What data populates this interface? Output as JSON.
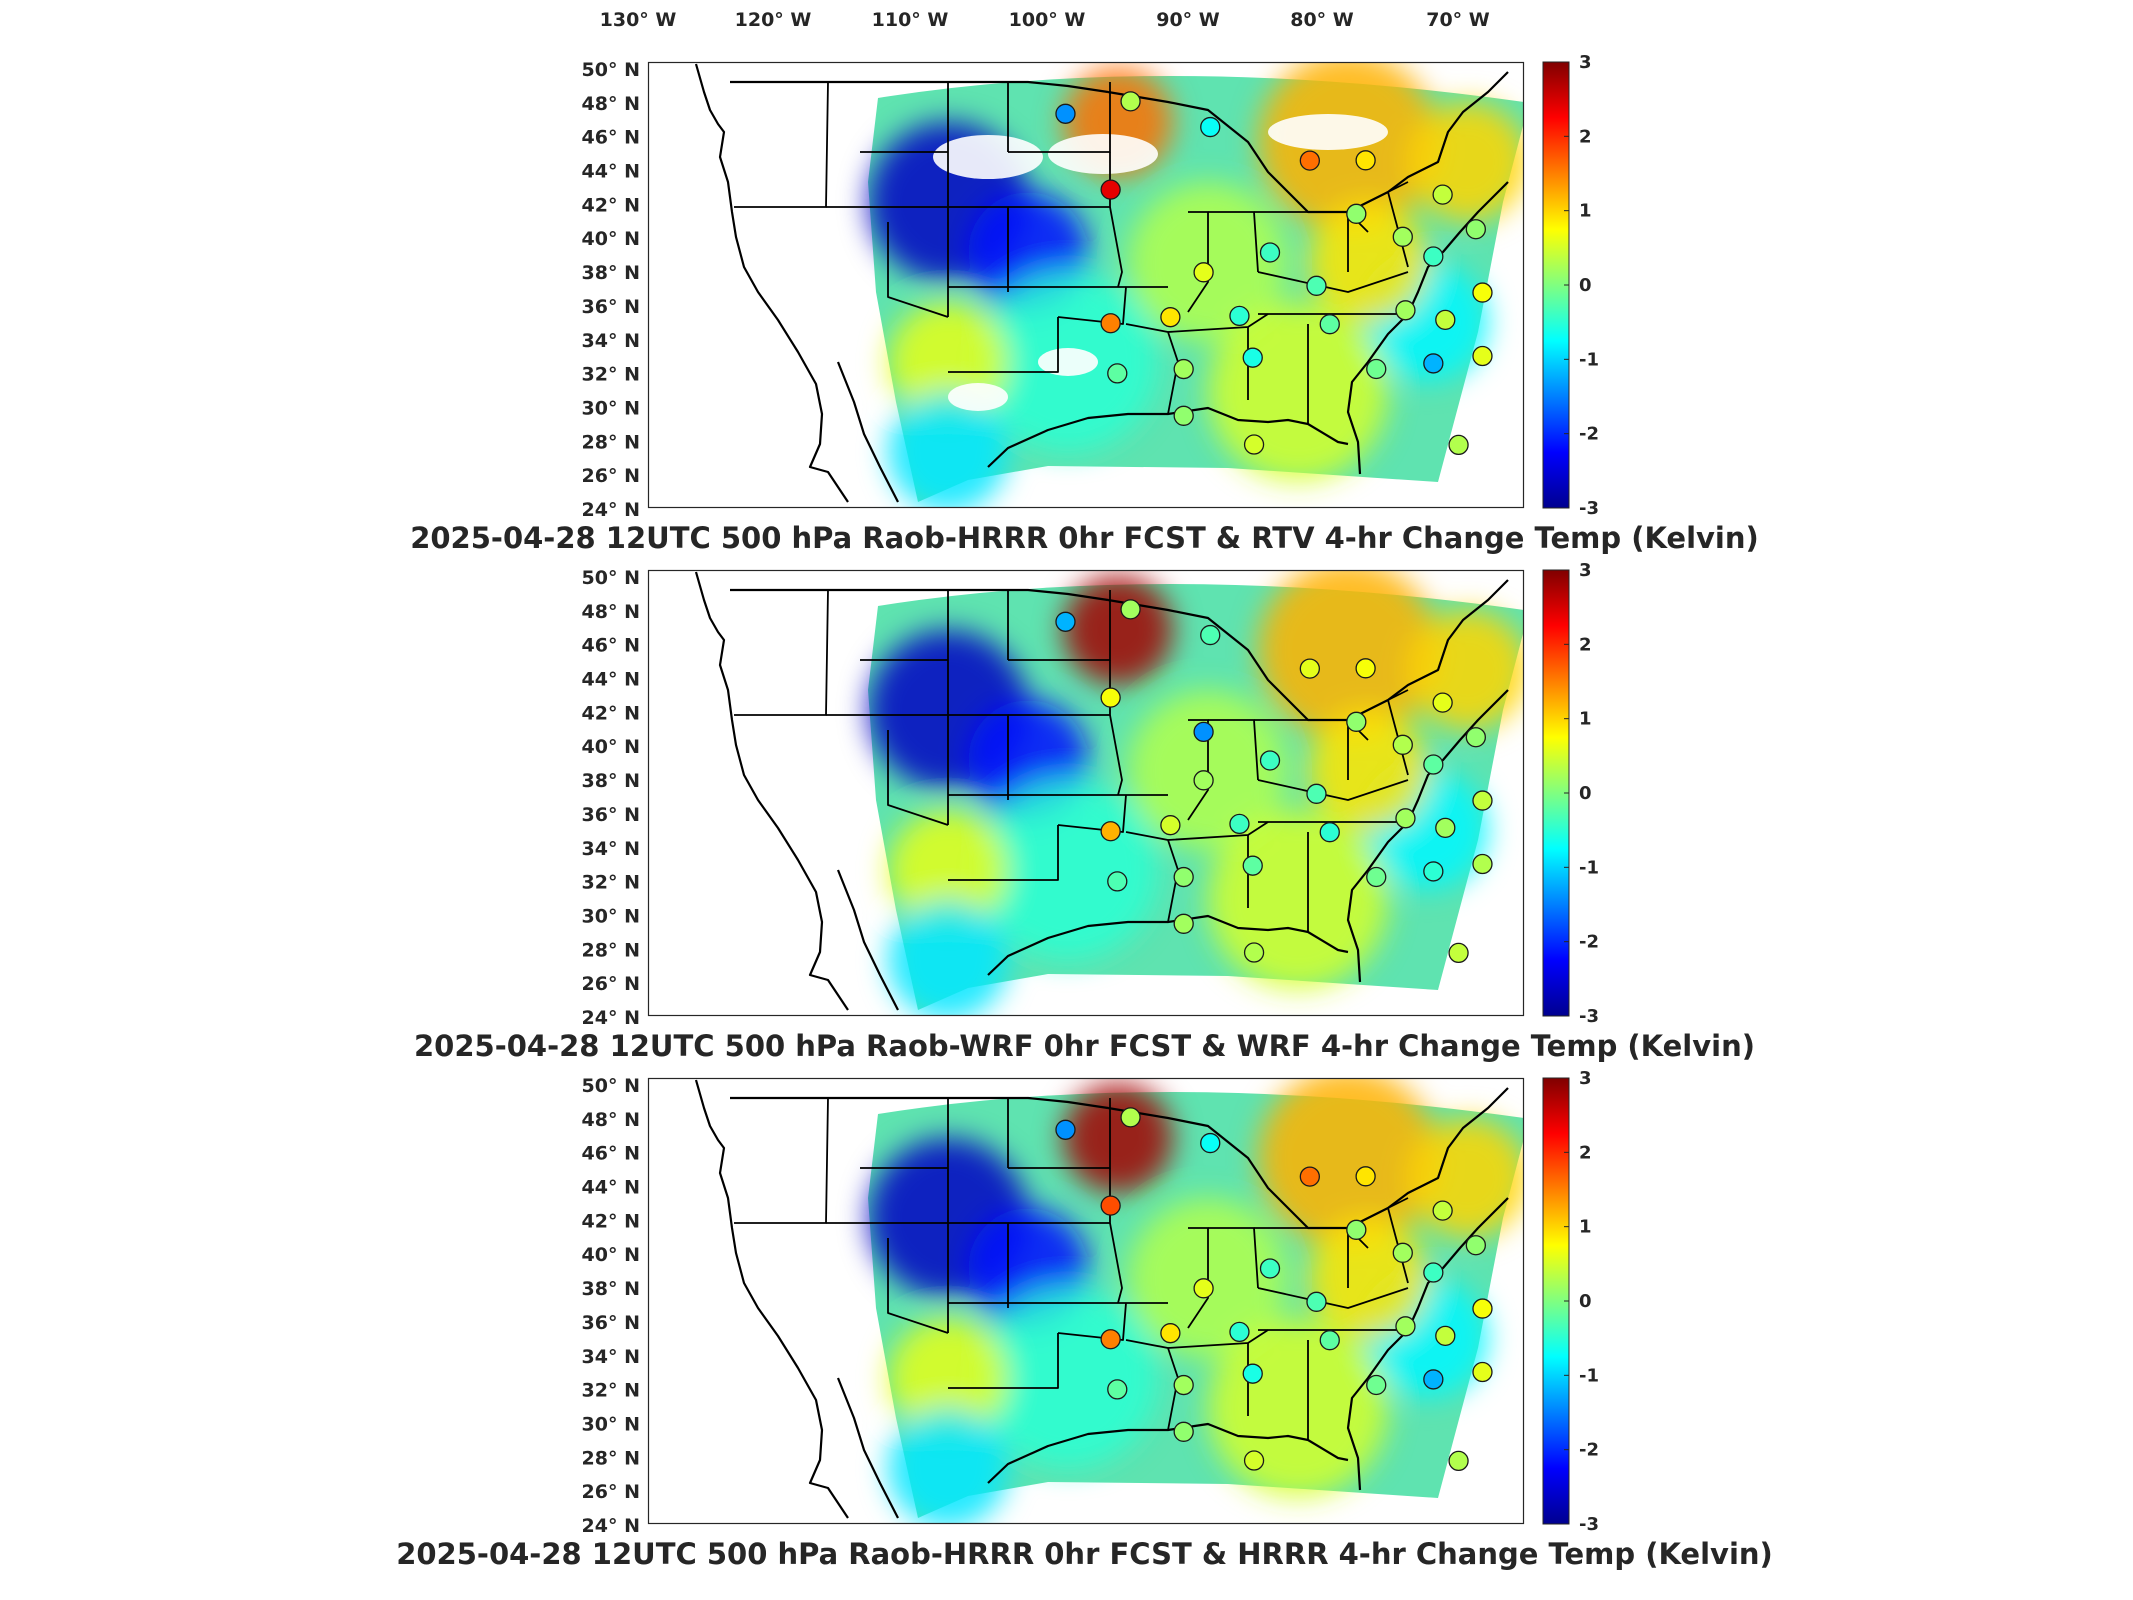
{
  "longitude_labels": [
    "130° W",
    "120° W",
    "110° W",
    "100° W",
    "90° W",
    "80° W",
    "70° W"
  ],
  "latitude_labels": [
    "50° N",
    "48° N",
    "46° N",
    "44° N",
    "42° N",
    "40° N",
    "38° N",
    "36° N",
    "34° N",
    "32° N",
    "30° N",
    "28° N",
    "26° N",
    "24° N"
  ],
  "colorbar": {
    "ticks": [
      "3",
      "2",
      "1",
      "0",
      "-1",
      "-2",
      "-3"
    ],
    "range": [
      -3,
      3
    ],
    "colormap": "jet"
  },
  "panels": [
    {
      "title": "2025-04-28 12UTC 500 hPa Raob-HRRR 0hr FCST & RTV 4-hr Change Temp (Kelvin)",
      "field_pattern": "RTV 4-hr change",
      "stations": [
        {
          "lon": -111.9,
          "lat": 47.5,
          "value": -1.4
        },
        {
          "lon": -107.0,
          "lat": 48.3,
          "value": 0.3
        },
        {
          "lon": -101.0,
          "lat": 46.8,
          "value": -0.7
        },
        {
          "lon": -93.5,
          "lat": 44.8,
          "value": 1.6
        },
        {
          "lon": -108.5,
          "lat": 43.0,
          "value": 2.4
        },
        {
          "lon": -89.3,
          "lat": 44.8,
          "value": 0.9
        },
        {
          "lon": -83.5,
          "lat": 42.7,
          "value": 0.4
        },
        {
          "lon": -90.0,
          "lat": 41.6,
          "value": 0.1
        },
        {
          "lon": -86.5,
          "lat": 40.2,
          "value": 0.2
        },
        {
          "lon": -81.0,
          "lat": 40.6,
          "value": 0.1
        },
        {
          "lon": -75.0,
          "lat": 42.8,
          "value": 0.3
        },
        {
          "lon": -96.5,
          "lat": 39.3,
          "value": -0.4
        },
        {
          "lon": -101.5,
          "lat": 38.1,
          "value": 0.6
        },
        {
          "lon": -93.0,
          "lat": 37.3,
          "value": -0.3
        },
        {
          "lon": -84.2,
          "lat": 39.0,
          "value": -0.4
        },
        {
          "lon": -80.5,
          "lat": 36.8,
          "value": 0.7
        },
        {
          "lon": -83.3,
          "lat": 35.2,
          "value": 0.4
        },
        {
          "lon": -104.0,
          "lat": 35.4,
          "value": 0.9
        },
        {
          "lon": -108.5,
          "lat": 35.0,
          "value": 1.5
        },
        {
          "lon": -98.8,
          "lat": 35.5,
          "value": -0.5
        },
        {
          "lon": -92.0,
          "lat": 35.0,
          "value": -0.2
        },
        {
          "lon": -86.3,
          "lat": 35.8,
          "value": 0.2
        },
        {
          "lon": -97.8,
          "lat": 33.0,
          "value": -0.6
        },
        {
          "lon": -103.0,
          "lat": 32.3,
          "value": 0.2
        },
        {
          "lon": -88.5,
          "lat": 32.3,
          "value": -0.1
        },
        {
          "lon": -84.2,
          "lat": 32.6,
          "value": -1.2
        },
        {
          "lon": -80.5,
          "lat": 33.0,
          "value": 0.6
        },
        {
          "lon": -108.0,
          "lat": 32.0,
          "value": -0.2
        },
        {
          "lon": -103.0,
          "lat": 29.5,
          "value": 0.1
        },
        {
          "lon": -97.7,
          "lat": 27.8,
          "value": 0.5
        },
        {
          "lon": -82.3,
          "lat": 27.7,
          "value": 0.3
        },
        {
          "lon": -76.0,
          "lat": 36.0,
          "value": 0.2
        }
      ]
    },
    {
      "title": "2025-04-28 12UTC 500 hPa Raob-WRF 0hr FCST & WRF 4-hr Change Temp (Kelvin)",
      "field_pattern": "WRF 4-hr change",
      "stations": [
        {
          "lon": -111.9,
          "lat": 47.5,
          "value": -1.2
        },
        {
          "lon": -107.0,
          "lat": 48.3,
          "value": 0.2
        },
        {
          "lon": -101.0,
          "lat": 46.8,
          "value": -0.3
        },
        {
          "lon": -93.5,
          "lat": 44.8,
          "value": 0.6
        },
        {
          "lon": -108.5,
          "lat": 43.0,
          "value": 0.7
        },
        {
          "lon": -89.3,
          "lat": 44.8,
          "value": 0.7
        },
        {
          "lon": -83.5,
          "lat": 42.7,
          "value": 0.6
        },
        {
          "lon": -90.0,
          "lat": 41.6,
          "value": 0.1
        },
        {
          "lon": -86.5,
          "lat": 40.2,
          "value": 0.3
        },
        {
          "lon": -81.0,
          "lat": 40.6,
          "value": 0.1
        },
        {
          "lon": -75.0,
          "lat": 42.8,
          "value": 0.2
        },
        {
          "lon": -101.5,
          "lat": 41.0,
          "value": -1.4
        },
        {
          "lon": -96.5,
          "lat": 39.3,
          "value": -0.4
        },
        {
          "lon": -101.5,
          "lat": 38.1,
          "value": 0.2
        },
        {
          "lon": -93.0,
          "lat": 37.3,
          "value": -0.3
        },
        {
          "lon": -84.2,
          "lat": 39.0,
          "value": -0.2
        },
        {
          "lon": -80.5,
          "lat": 36.8,
          "value": 0.4
        },
        {
          "lon": -83.3,
          "lat": 35.2,
          "value": 0.2
        },
        {
          "lon": -104.0,
          "lat": 35.4,
          "value": 0.5
        },
        {
          "lon": -108.5,
          "lat": 35.0,
          "value": 1.2
        },
        {
          "lon": -98.8,
          "lat": 35.5,
          "value": -0.4
        },
        {
          "lon": -92.0,
          "lat": 35.0,
          "value": -0.5
        },
        {
          "lon": -86.3,
          "lat": 35.8,
          "value": 0.2
        },
        {
          "lon": -97.8,
          "lat": 33.0,
          "value": -0.2
        },
        {
          "lon": -103.0,
          "lat": 32.3,
          "value": 0.1
        },
        {
          "lon": -88.5,
          "lat": 32.3,
          "value": -0.1
        },
        {
          "lon": -84.2,
          "lat": 32.6,
          "value": -0.5
        },
        {
          "lon": -80.5,
          "lat": 33.0,
          "value": 0.3
        },
        {
          "lon": -108.0,
          "lat": 32.0,
          "value": -0.3
        },
        {
          "lon": -103.0,
          "lat": 29.5,
          "value": 0.2
        },
        {
          "lon": -97.7,
          "lat": 27.8,
          "value": 0.3
        },
        {
          "lon": -82.3,
          "lat": 27.7,
          "value": 0.4
        },
        {
          "lon": -76.0,
          "lat": 36.0,
          "value": 0.1
        }
      ]
    },
    {
      "title": "2025-04-28 12UTC 500 hPa Raob-HRRR 0hr FCST & HRRR 4-hr Change Temp (Kelvin)",
      "field_pattern": "HRRR 4-hr change",
      "stations": [
        {
          "lon": -111.9,
          "lat": 47.5,
          "value": -1.4
        },
        {
          "lon": -107.0,
          "lat": 48.3,
          "value": 0.3
        },
        {
          "lon": -101.0,
          "lat": 46.8,
          "value": -0.7
        },
        {
          "lon": -93.5,
          "lat": 44.8,
          "value": 1.6
        },
        {
          "lon": -108.5,
          "lat": 43.0,
          "value": 1.8
        },
        {
          "lon": -89.3,
          "lat": 44.8,
          "value": 0.9
        },
        {
          "lon": -83.5,
          "lat": 42.7,
          "value": 0.4
        },
        {
          "lon": -90.0,
          "lat": 41.6,
          "value": 0.1
        },
        {
          "lon": -86.5,
          "lat": 40.2,
          "value": 0.2
        },
        {
          "lon": -81.0,
          "lat": 40.6,
          "value": 0.1
        },
        {
          "lon": -75.0,
          "lat": 42.8,
          "value": 0.3
        },
        {
          "lon": -96.5,
          "lat": 39.3,
          "value": -0.4
        },
        {
          "lon": -101.5,
          "lat": 38.1,
          "value": 0.6
        },
        {
          "lon": -93.0,
          "lat": 37.3,
          "value": -0.3
        },
        {
          "lon": -84.2,
          "lat": 39.0,
          "value": -0.4
        },
        {
          "lon": -80.5,
          "lat": 36.8,
          "value": 0.7
        },
        {
          "lon": -83.3,
          "lat": 35.2,
          "value": 0.4
        },
        {
          "lon": -104.0,
          "lat": 35.4,
          "value": 0.9
        },
        {
          "lon": -108.5,
          "lat": 35.0,
          "value": 1.5
        },
        {
          "lon": -98.8,
          "lat": 35.5,
          "value": -0.5
        },
        {
          "lon": -92.0,
          "lat": 35.0,
          "value": -0.2
        },
        {
          "lon": -86.3,
          "lat": 35.8,
          "value": 0.2
        },
        {
          "lon": -97.8,
          "lat": 33.0,
          "value": -0.6
        },
        {
          "lon": -103.0,
          "lat": 32.3,
          "value": 0.2
        },
        {
          "lon": -88.5,
          "lat": 32.3,
          "value": -0.1
        },
        {
          "lon": -84.2,
          "lat": 32.6,
          "value": -1.2
        },
        {
          "lon": -80.5,
          "lat": 33.0,
          "value": 0.6
        },
        {
          "lon": -108.0,
          "lat": 32.0,
          "value": -0.2
        },
        {
          "lon": -103.0,
          "lat": 29.5,
          "value": 0.1
        },
        {
          "lon": -97.7,
          "lat": 27.8,
          "value": 0.5
        },
        {
          "lon": -82.3,
          "lat": 27.7,
          "value": 0.3
        },
        {
          "lon": -76.0,
          "lat": 36.0,
          "value": 0.2
        }
      ]
    }
  ]
}
